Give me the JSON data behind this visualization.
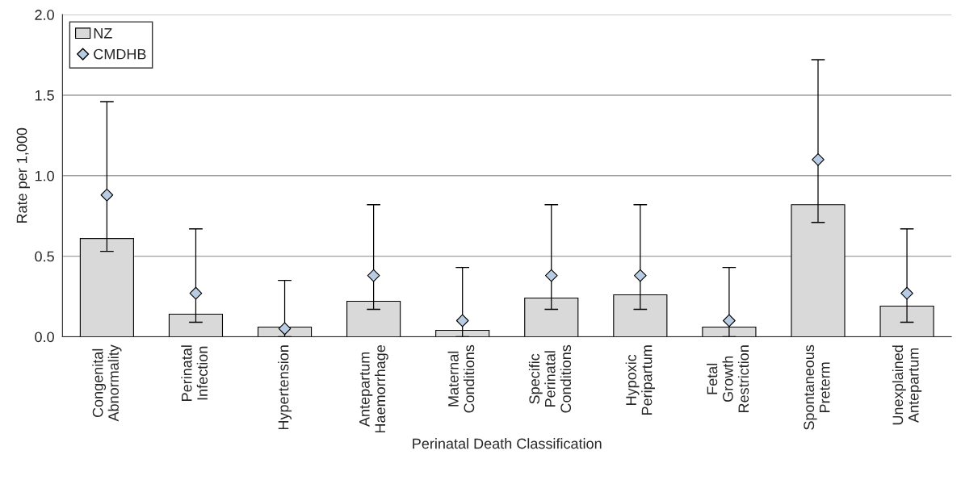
{
  "chart_data": {
    "type": "bar",
    "xlabel": "Perinatal Death Classification",
    "ylabel": "Rate per 1,000",
    "categories": [
      "Congenital\nAbnormality",
      "Perinatal\nInfection",
      "Hypertension",
      "Antepartum\nHaemorrhage",
      "Maternal\nConditions",
      "Specific\nPerinatal\nConditions",
      "Hypoxic\nPeripartum",
      "Fetal\nGrowth\nRestriction",
      "Spontaneous\nPreterm",
      "Unexplained\nAntepartum"
    ],
    "series": [
      {
        "name": "NZ",
        "color": "#d9d9d9",
        "values": [
          0.61,
          0.14,
          0.06,
          0.22,
          0.04,
          0.24,
          0.26,
          0.06,
          0.82,
          0.19
        ]
      },
      {
        "name": "CMDHB",
        "type": "scatter",
        "color": "#b8cce4",
        "values": [
          0.88,
          0.27,
          0.05,
          0.38,
          0.1,
          0.38,
          0.38,
          0.1,
          1.1,
          0.27
        ],
        "errors": [
          [
            0.53,
            1.46
          ],
          [
            0.09,
            0.67
          ],
          [
            0.0,
            0.35
          ],
          [
            0.17,
            0.82
          ],
          [
            0.0,
            0.43
          ],
          [
            0.17,
            0.82
          ],
          [
            0.17,
            0.82
          ],
          [
            0.0,
            0.43
          ],
          [
            0.71,
            1.72
          ],
          [
            0.09,
            0.67
          ]
        ]
      }
    ],
    "ylim": [
      0,
      2.0
    ],
    "yticks": [
      {
        "value": 0,
        "label": "0.0"
      },
      {
        "value": 0.5,
        "label": "0.5"
      },
      {
        "value": 1.0,
        "label": "1.0"
      },
      {
        "value": 1.5,
        "label": "1.5"
      },
      {
        "value": 2.0,
        "label": "2.0"
      }
    ],
    "grid": "y",
    "legend": "top left",
    "marker": "diamond"
  }
}
